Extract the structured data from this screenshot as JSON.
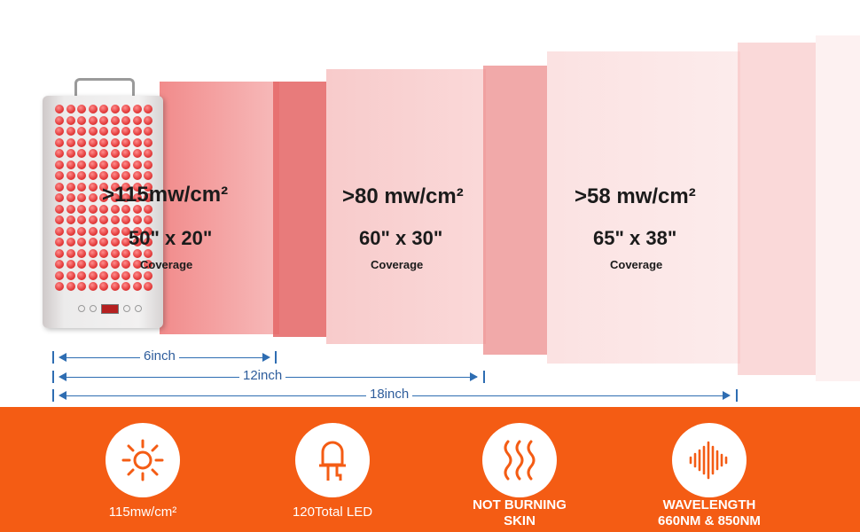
{
  "zones": [
    {
      "power": ">115mw/cm²",
      "size": "50\" x 20\"",
      "coverage": "Coverage"
    },
    {
      "power": ">80 mw/cm²",
      "size": "60\" x 30\"",
      "coverage": "Coverage"
    },
    {
      "power": ">58 mw/cm²",
      "size": "65\" x 38\"",
      "coverage": "Coverage"
    }
  ],
  "distances": [
    "6inch",
    "12inch",
    "18inch"
  ],
  "features": [
    {
      "label": "115mw/cm²",
      "icon": "sun-icon"
    },
    {
      "label": "120Total LED",
      "icon": "led-bulb-icon"
    },
    {
      "label_lines": [
        "NOT BURNING",
        "SKIN"
      ],
      "icon": "heat-waves-icon"
    },
    {
      "label_lines": [
        "WAVELENGTH",
        "660NM & 850NM"
      ],
      "icon": "sound-wave-icon"
    }
  ],
  "colors": {
    "accent": "#f45c14",
    "ruler": "#2e6db2",
    "light": "#e45a5a",
    "led": "#e43c3c"
  }
}
